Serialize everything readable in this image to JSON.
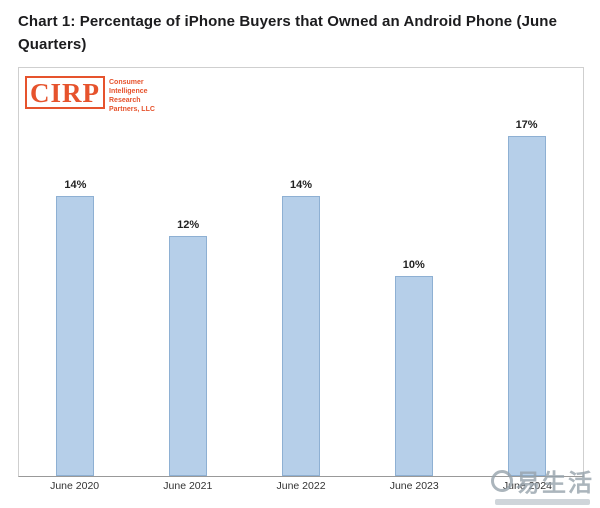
{
  "page_title": "Chart 1: Percentage of iPhone Buyers that Owned an Android Phone (June Quarters)",
  "logo": {
    "acronym": "CIRP",
    "lines": [
      "Consumer",
      "Intelligence",
      "Research",
      "Partners, LLC"
    ]
  },
  "watermark": {
    "text": "易生活"
  },
  "chart_data": {
    "type": "bar",
    "title": "Percentage of iPhone Buyers that Owned an Android Phone (June Quarters)",
    "categories": [
      "June 2020",
      "June 2021",
      "June 2022",
      "June 2023",
      "June 2024"
    ],
    "values": [
      14,
      12,
      14,
      10,
      17
    ],
    "value_labels": [
      "14%",
      "12%",
      "14%",
      "10%",
      "17%"
    ],
    "xlabel": "",
    "ylabel": "",
    "ylim": [
      0,
      18
    ],
    "grid": false,
    "legend": false,
    "bar_color": "#b6cfe9",
    "bar_border_color": "#8eb0d3",
    "axis_line_color": "#999999"
  },
  "colors": {
    "accent_orange": "#e6532d",
    "title_text": "#1c1c1e",
    "panel_border": "#cfcfcf",
    "watermark_gray": "#97a3ac"
  }
}
